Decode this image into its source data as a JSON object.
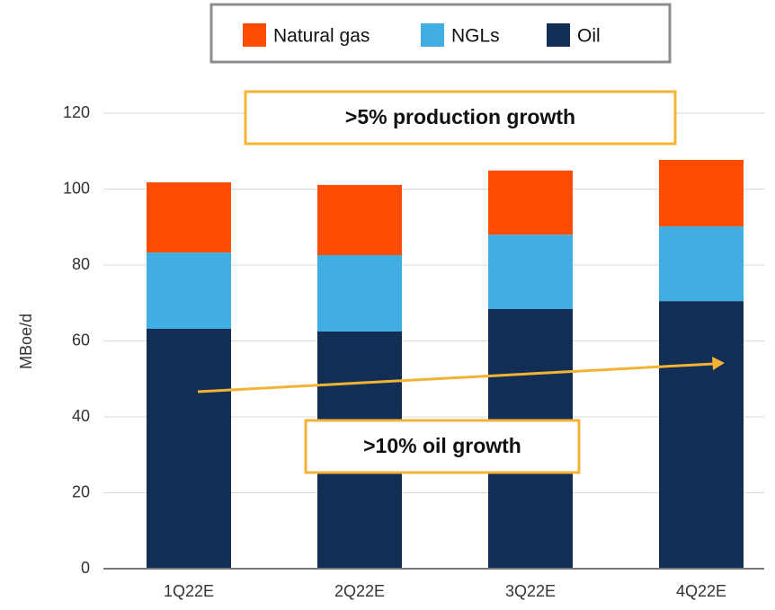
{
  "chart_data": {
    "type": "stacked_bar",
    "categories": [
      "1Q22E",
      "2Q22E",
      "3Q22E",
      "4Q22E"
    ],
    "series": [
      {
        "name": "Natural gas",
        "color": "#ff4c00",
        "values": [
          18.5,
          18.5,
          16.9,
          17.5
        ]
      },
      {
        "name": "NGLs",
        "color": "#41aee3",
        "values": [
          20.1,
          20.1,
          19.6,
          19.7
        ]
      },
      {
        "name": "Oil",
        "color": "#132e55",
        "values": [
          63.2,
          62.5,
          68.4,
          70.5
        ]
      }
    ],
    "y_label": "MBoe/d",
    "ylim": [
      0,
      120
    ],
    "yticks": [
      0,
      20,
      40,
      60,
      80,
      100,
      120
    ],
    "grid": true,
    "annotations": [
      ">5% production growth",
      ">10% oil growth"
    ]
  }
}
